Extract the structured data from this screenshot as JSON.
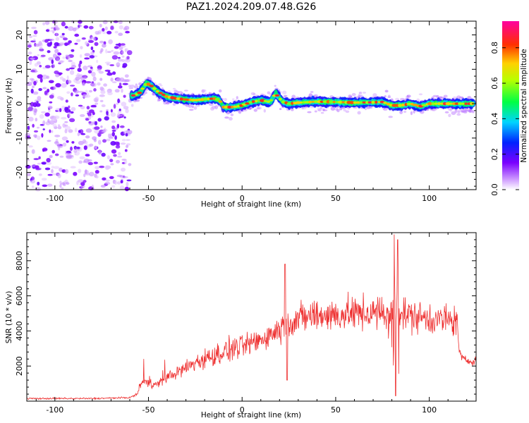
{
  "title": "PAZ1.2024.209.07.48.G26",
  "chart_data": [
    {
      "type": "heatmap",
      "xlabel": "Height of straight line (km)",
      "ylabel": "Frequency (Hz)",
      "xlim": [
        -115,
        125
      ],
      "ylim": [
        -25,
        24
      ],
      "xticks": [
        "-100",
        "-50",
        "0",
        "50",
        "100"
      ],
      "yticks": [
        "-20",
        "-10",
        "0",
        "10",
        "20"
      ],
      "colorbar": {
        "label": "Normalized spectral amplitude",
        "range": [
          0,
          0.95
        ],
        "ticks": [
          "0.0",
          "0.2",
          "0.4",
          "0.6",
          "0.8"
        ],
        "colormap": "gist_rainbow_r (violet to red)"
      },
      "noise_region_x": [
        -115,
        -60
      ],
      "ridge": {
        "x": [
          -60,
          -55,
          -51,
          -48,
          -45,
          -40,
          -35,
          -30,
          -25,
          -20,
          -15,
          -12,
          -10,
          -5,
          0,
          5,
          10,
          15,
          18,
          20,
          22,
          25,
          30,
          40,
          50,
          60,
          70,
          75,
          80,
          85,
          90,
          95,
          100,
          110,
          125
        ],
        "freq": [
          2,
          3,
          6,
          5,
          3.5,
          2,
          1.5,
          1.2,
          1,
          1.3,
          1.5,
          1,
          -1,
          -1,
          -0.5,
          0.5,
          1,
          0.5,
          3,
          1.5,
          0.5,
          0,
          0.3,
          0.6,
          0.5,
          0.3,
          0.4,
          0.5,
          -0.5,
          -0.5,
          0,
          -0.8,
          0,
          0,
          0
        ]
      }
    },
    {
      "type": "line",
      "xlabel": "Height of straight line (km)",
      "ylabel": "SNR (10 * v/v)",
      "xlim": [
        -115,
        125
      ],
      "ylim": [
        0,
        9600
      ],
      "xticks": [
        "-100",
        "-50",
        "0",
        "50",
        "100"
      ],
      "yticks": [
        "2000",
        "4000",
        "6000",
        "8000"
      ],
      "color": "#ee3030",
      "series": [
        {
          "x": [
            -115,
            -100,
            -80,
            -60,
            -56,
            -55,
            -52,
            -50,
            -48,
            -45,
            -42,
            -40,
            -35,
            -30,
            -25,
            -20,
            -15,
            -10,
            -5,
            0,
            5,
            10,
            15,
            20,
            22,
            24,
            26,
            30,
            40,
            50,
            60,
            70,
            75,
            78,
            80,
            81,
            82,
            83,
            85,
            90,
            100,
            110,
            115,
            116,
            118,
            120,
            125
          ],
          "y": [
            150,
            150,
            150,
            200,
            400,
            800,
            1200,
            1000,
            900,
            1000,
            1200,
            1400,
            1600,
            1900,
            2200,
            2400,
            2600,
            2800,
            3000,
            3100,
            3300,
            3500,
            3800,
            4100,
            4300,
            4600,
            4600,
            4700,
            4900,
            4900,
            5000,
            5000,
            5000,
            5000,
            5000,
            5000,
            4800,
            4900,
            5000,
            4900,
            4700,
            4600,
            4500,
            2800,
            2400,
            2300,
            2300
          ]
        }
      ],
      "annotations": [
        {
          "x": 23,
          "y": 7800,
          "label": "spike"
        },
        {
          "x": 81,
          "y": 9500,
          "label": "spike"
        },
        {
          "x": 83,
          "y": 9200,
          "label": "spike"
        },
        {
          "x": 82,
          "y": 300,
          "label": "dip"
        },
        {
          "x": 24,
          "y": 1200,
          "label": "dip"
        }
      ]
    }
  ]
}
